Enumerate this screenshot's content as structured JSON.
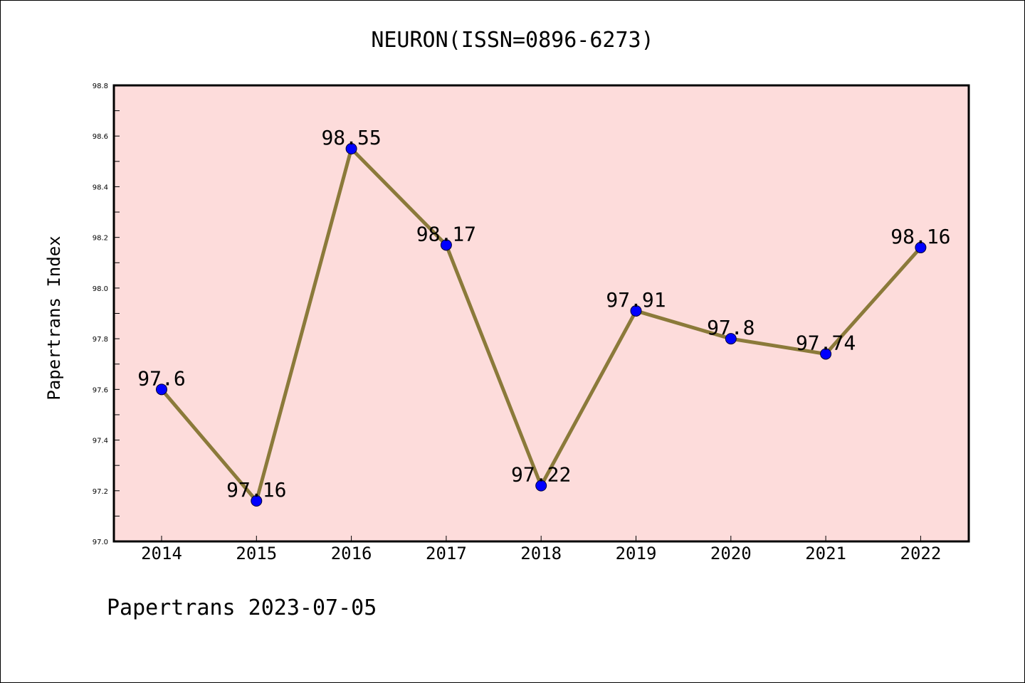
{
  "chart_data": {
    "type": "line",
    "title": "NEURON(ISSN=0896-6273)",
    "ylabel": "Papertrans Index",
    "xlabel": "",
    "footer": "Papertrans 2023-07-05",
    "categories": [
      "2014",
      "2015",
      "2016",
      "2017",
      "2018",
      "2019",
      "2020",
      "2021",
      "2022"
    ],
    "values": [
      97.6,
      97.16,
      98.55,
      98.17,
      97.22,
      97.91,
      97.8,
      97.74,
      98.16
    ],
    "data_labels": [
      "97.6",
      "97.16",
      "98.55",
      "98.17",
      "97.22",
      "97.91",
      "97.8",
      "97.74",
      "98.16"
    ],
    "ylim": [
      97.0,
      98.8
    ],
    "yticks": [
      "97.0",
      "97.2",
      "97.4",
      "97.6",
      "97.8",
      "98.0",
      "98.2",
      "98.4",
      "98.6",
      "98.8"
    ],
    "grid": false,
    "colors": {
      "plot_background": "#fddcdb",
      "line": "#8b7a3a",
      "marker": "#0000ff"
    }
  }
}
